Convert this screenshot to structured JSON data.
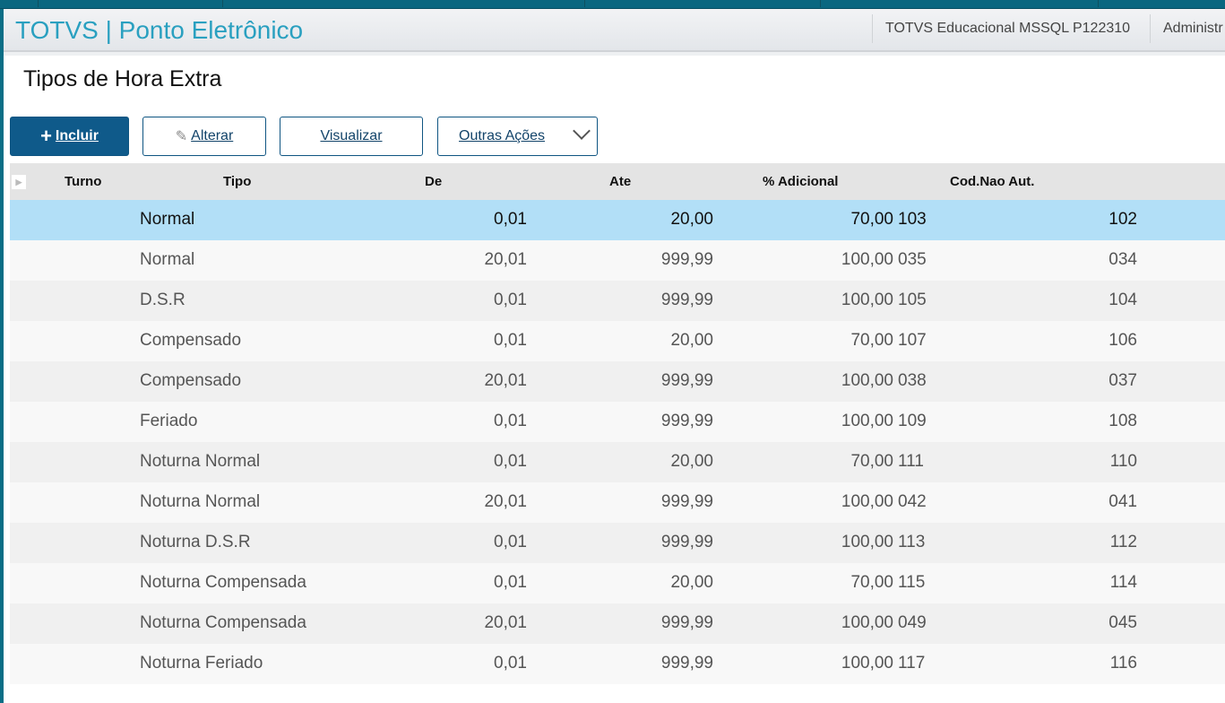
{
  "app": {
    "title": "TOTVS | Ponto Eletrônico",
    "environment": "TOTVS Educacional MSSQL P122310",
    "user": "Administr"
  },
  "page": {
    "title": "Tipos de Hora Extra"
  },
  "toolbar": {
    "incluir": "Incluir",
    "alterar": "Alterar",
    "visualizar": "Visualizar",
    "outras": "Outras Ações"
  },
  "columns": {
    "turno": "Turno",
    "tipo": "Tipo",
    "de": "De",
    "ate": "Ate",
    "adicional": "% Adicional",
    "cod_nao_aut": "Cod.Nao Aut."
  },
  "rows": [
    {
      "tipo": "Normal",
      "de": "0,01",
      "ate": "20,00",
      "adicional": "70,00",
      "cod_aut": "103",
      "cod_nao_aut": "102",
      "selected": true
    },
    {
      "tipo": "Normal",
      "de": "20,01",
      "ate": "999,99",
      "adicional": "100,00",
      "cod_aut": "035",
      "cod_nao_aut": "034"
    },
    {
      "tipo": "D.S.R",
      "de": "0,01",
      "ate": "999,99",
      "adicional": "100,00",
      "cod_aut": "105",
      "cod_nao_aut": "104"
    },
    {
      "tipo": "Compensado",
      "de": "0,01",
      "ate": "20,00",
      "adicional": "70,00",
      "cod_aut": "107",
      "cod_nao_aut": "106"
    },
    {
      "tipo": "Compensado",
      "de": "20,01",
      "ate": "999,99",
      "adicional": "100,00",
      "cod_aut": "038",
      "cod_nao_aut": "037"
    },
    {
      "tipo": "Feriado",
      "de": "0,01",
      "ate": "999,99",
      "adicional": "100,00",
      "cod_aut": "109",
      "cod_nao_aut": "108"
    },
    {
      "tipo": "Noturna Normal",
      "de": "0,01",
      "ate": "20,00",
      "adicional": "70,00",
      "cod_aut": "111",
      "cod_nao_aut": "110"
    },
    {
      "tipo": "Noturna Normal",
      "de": "20,01",
      "ate": "999,99",
      "adicional": "100,00",
      "cod_aut": "042",
      "cod_nao_aut": "041"
    },
    {
      "tipo": "Noturna D.S.R",
      "de": "0,01",
      "ate": "999,99",
      "adicional": "100,00",
      "cod_aut": "113",
      "cod_nao_aut": "112"
    },
    {
      "tipo": "Noturna Compensada",
      "de": "0,01",
      "ate": "20,00",
      "adicional": "70,00",
      "cod_aut": "115",
      "cod_nao_aut": "114"
    },
    {
      "tipo": "Noturna Compensada",
      "de": "20,01",
      "ate": "999,99",
      "adicional": "100,00",
      "cod_aut": "049",
      "cod_nao_aut": "045"
    },
    {
      "tipo": "Noturna Feriado",
      "de": "0,01",
      "ate": "999,99",
      "adicional": "100,00",
      "cod_aut": "117",
      "cod_nao_aut": "116"
    }
  ]
}
